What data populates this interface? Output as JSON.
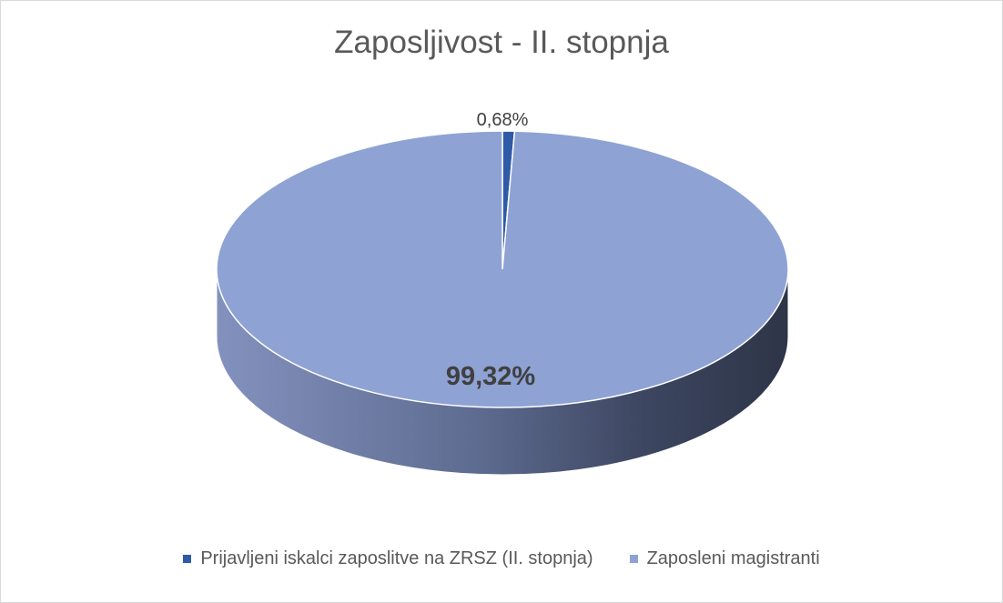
{
  "chart_data": {
    "type": "pie",
    "title": "Zaposljivost - II. stopnja",
    "style": "3d",
    "categories": [
      "Prijavljeni iskalci zaposlitve na ZRSZ (II. stopnja)",
      "Zaposleni magistranti"
    ],
    "values": [
      0.68,
      99.32
    ],
    "data_labels": [
      "0,68%",
      "99,32%"
    ],
    "colors": [
      "#2f5aa8",
      "#8ea2d4"
    ],
    "legend_position": "bottom"
  }
}
